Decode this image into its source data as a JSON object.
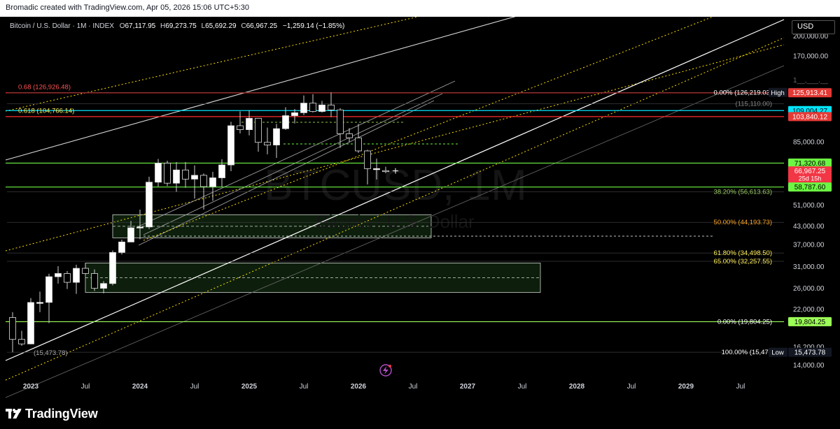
{
  "header": {
    "credit": "Bromadic created with TradingView.com, Apr 05, 2026 15:06 UTC+5:30"
  },
  "legend": {
    "symbol": "Bitcoin / U.S. Dollar · 1M · INDEX",
    "o_label": "O",
    "o_value": "67,117.95",
    "h_label": "H",
    "h_value": "69,273.75",
    "l_label": "L",
    "l_value": "65,692.29",
    "c_label": "C",
    "c_value": "66,967.25",
    "change": "−1,259.14 (−1.85%)",
    "change_color": "#ffffff"
  },
  "currency_button": "USD",
  "footer": {
    "brand": "TradingView"
  },
  "watermark": {
    "ticker": "BTCUSD, 1M",
    "name": "Bitcoin / U.S. Dollar"
  },
  "chart_data": {
    "type": "candlestick",
    "y_scale": "log",
    "ylim": [
      13000,
      230000
    ],
    "y_ticks": [
      {
        "value": 200000,
        "label": "200,000.00"
      },
      {
        "value": 170000,
        "label": "170,000.00"
      },
      {
        "value": 85000,
        "label": "85,000.00"
      },
      {
        "value": 51000,
        "label": "51,000.00"
      },
      {
        "value": 43000,
        "label": "43,000.00"
      },
      {
        "value": 37000,
        "label": "37,000.00"
      },
      {
        "value": 31000,
        "label": "31,000.00"
      },
      {
        "value": 26000,
        "label": "26,000.00"
      },
      {
        "value": 22000,
        "label": "22,000.00"
      },
      {
        "value": 16200,
        "label": "16,200.00"
      },
      {
        "value": 14000,
        "label": "14,000.00"
      }
    ],
    "x_range": [
      "2022-11",
      "2029-11"
    ],
    "x_ticks": [
      {
        "date": "2023-01",
        "label": "2023",
        "bold": true
      },
      {
        "date": "2023-07",
        "label": "Jul",
        "bold": false
      },
      {
        "date": "2024-01",
        "label": "2024",
        "bold": true
      },
      {
        "date": "2024-07",
        "label": "Jul",
        "bold": false
      },
      {
        "date": "2025-01",
        "label": "2025",
        "bold": true
      },
      {
        "date": "2025-07",
        "label": "Jul",
        "bold": false
      },
      {
        "date": "2026-01",
        "label": "2026",
        "bold": true
      },
      {
        "date": "2026-07",
        "label": "Jul",
        "bold": false
      },
      {
        "date": "2027-01",
        "label": "2027",
        "bold": true
      },
      {
        "date": "2027-07",
        "label": "Jul",
        "bold": false
      },
      {
        "date": "2028-01",
        "label": "2028",
        "bold": true
      },
      {
        "date": "2028-07",
        "label": "Jul",
        "bold": false
      },
      {
        "date": "2029-01",
        "label": "2029",
        "bold": true
      },
      {
        "date": "2029-07",
        "label": "Jul",
        "bold": false
      }
    ],
    "candles": [
      {
        "date": "2022-11",
        "o": 20490,
        "h": 21400,
        "l": 15480,
        "c": 17170
      },
      {
        "date": "2022-12",
        "o": 17170,
        "h": 18390,
        "l": 16300,
        "c": 16550
      },
      {
        "date": "2023-01",
        "o": 16550,
        "h": 23960,
        "l": 16500,
        "c": 23130
      },
      {
        "date": "2023-02",
        "o": 23130,
        "h": 25250,
        "l": 21400,
        "c": 23150
      },
      {
        "date": "2023-03",
        "o": 23150,
        "h": 29190,
        "l": 19570,
        "c": 28480
      },
      {
        "date": "2023-04",
        "o": 28480,
        "h": 31000,
        "l": 26940,
        "c": 29230
      },
      {
        "date": "2023-05",
        "o": 29230,
        "h": 29820,
        "l": 25800,
        "c": 27220
      },
      {
        "date": "2023-06",
        "o": 27220,
        "h": 31380,
        "l": 24800,
        "c": 30480
      },
      {
        "date": "2023-07",
        "o": 30480,
        "h": 31800,
        "l": 28860,
        "c": 29230
      },
      {
        "date": "2023-08",
        "o": 29230,
        "h": 30200,
        "l": 25400,
        "c": 25940
      },
      {
        "date": "2023-09",
        "o": 25940,
        "h": 27480,
        "l": 24900,
        "c": 26960
      },
      {
        "date": "2023-10",
        "o": 26960,
        "h": 35200,
        "l": 26560,
        "c": 34650
      },
      {
        "date": "2023-11",
        "o": 34650,
        "h": 38420,
        "l": 34100,
        "c": 37710
      },
      {
        "date": "2023-12",
        "o": 37710,
        "h": 44700,
        "l": 37620,
        "c": 42280
      },
      {
        "date": "2024-01",
        "o": 42280,
        "h": 48970,
        "l": 38550,
        "c": 42580
      },
      {
        "date": "2024-02",
        "o": 42580,
        "h": 63900,
        "l": 41880,
        "c": 61130
      },
      {
        "date": "2024-03",
        "o": 61130,
        "h": 73750,
        "l": 59000,
        "c": 71290
      },
      {
        "date": "2024-04",
        "o": 71290,
        "h": 72700,
        "l": 59200,
        "c": 60640
      },
      {
        "date": "2024-05",
        "o": 60640,
        "h": 71950,
        "l": 56550,
        "c": 67470
      },
      {
        "date": "2024-06",
        "o": 67470,
        "h": 71950,
        "l": 58450,
        "c": 62670
      },
      {
        "date": "2024-07",
        "o": 62670,
        "h": 70000,
        "l": 53550,
        "c": 64620
      },
      {
        "date": "2024-08",
        "o": 64620,
        "h": 65590,
        "l": 49000,
        "c": 58970
      },
      {
        "date": "2024-09",
        "o": 58970,
        "h": 66480,
        "l": 52550,
        "c": 63330
      },
      {
        "date": "2024-10",
        "o": 63330,
        "h": 73600,
        "l": 58900,
        "c": 70280
      },
      {
        "date": "2024-11",
        "o": 70280,
        "h": 99590,
        "l": 66800,
        "c": 96450
      },
      {
        "date": "2024-12",
        "o": 96450,
        "h": 108350,
        "l": 90600,
        "c": 93430
      },
      {
        "date": "2025-01",
        "o": 93430,
        "h": 109360,
        "l": 89200,
        "c": 102430
      },
      {
        "date": "2025-02",
        "o": 102430,
        "h": 102500,
        "l": 78200,
        "c": 84350
      },
      {
        "date": "2025-03",
        "o": 84350,
        "h": 95000,
        "l": 76550,
        "c": 82550
      },
      {
        "date": "2025-04",
        "o": 82550,
        "h": 97900,
        "l": 74400,
        "c": 94200
      },
      {
        "date": "2025-05",
        "o": 94200,
        "h": 111980,
        "l": 93300,
        "c": 104640
      },
      {
        "date": "2025-06",
        "o": 104640,
        "h": 110500,
        "l": 98200,
        "c": 107140
      },
      {
        "date": "2025-07",
        "o": 107140,
        "h": 123200,
        "l": 105100,
        "c": 115760
      },
      {
        "date": "2025-08",
        "o": 115760,
        "h": 124500,
        "l": 107300,
        "c": 108230
      },
      {
        "date": "2025-09",
        "o": 108230,
        "h": 117900,
        "l": 107260,
        "c": 114050
      },
      {
        "date": "2025-10",
        "o": 114050,
        "h": 126219,
        "l": 103500,
        "c": 109570
      },
      {
        "date": "2025-11",
        "o": 109570,
        "h": 111200,
        "l": 80600,
        "c": 90400
      },
      {
        "date": "2025-12",
        "o": 90400,
        "h": 94600,
        "l": 84500,
        "c": 87500
      },
      {
        "date": "2026-01",
        "o": 87500,
        "h": 97900,
        "l": 77500,
        "c": 78700
      },
      {
        "date": "2026-02",
        "o": 78700,
        "h": 79400,
        "l": 60000,
        "c": 68200
      },
      {
        "date": "2026-03",
        "o": 68200,
        "h": 74000,
        "l": 62500,
        "c": 68227
      },
      {
        "date": "2026-04",
        "o": 67118,
        "h": 69274,
        "l": 65692,
        "c": 66967
      }
    ],
    "horizontal_lines": [
      {
        "value": 125913.41,
        "color": "#ff2b2b",
        "width": 1.2
      },
      {
        "value": 109004.27,
        "color": "#00e5ff",
        "width": 1.2
      },
      {
        "value": 103840.12,
        "color": "#ff2b2b",
        "width": 1.2
      },
      {
        "value": 71320.68,
        "color": "#6cf542",
        "width": 1.2
      },
      {
        "value": 58787.6,
        "color": "#6cf542",
        "width": 1.2
      },
      {
        "value": 19804.25,
        "color": "#9cff57",
        "width": 1.2
      }
    ],
    "fib_levels": [
      {
        "value": 126219.03,
        "label": "0.00% (126,219.03)",
        "color": "#ffffff"
      },
      {
        "value": 115110,
        "label": "(115,110.00)",
        "color": "#888888"
      },
      {
        "value": 56613.63,
        "label": "38.20% (56,613.63)",
        "color": "#9ccc65"
      },
      {
        "value": 44193.73,
        "label": "50.00% (44,193.73)",
        "color": "#ffa726"
      },
      {
        "value": 34498.5,
        "label": "61.80% (34,498.50)",
        "color": "#ffee58"
      },
      {
        "value": 32257.55,
        "label": "65.00% (32,257.55)",
        "color": "#ffee58"
      },
      {
        "value": 19804.25,
        "label": "0.00% (19,804.25)",
        "color": "#ffffff"
      },
      {
        "value": 15473.78,
        "label": "100.00% (15,473",
        "color": "#ffffff"
      }
    ],
    "left_fib_labels": [
      {
        "value": 126926.48,
        "label": "0.68 (126,926.48)",
        "color": "#ff5252"
      },
      {
        "value": 104766.14,
        "label": "0.618 (104,766.14)",
        "color": "#ffee58"
      },
      {
        "value": 15473.78,
        "label": "(15,473.78)",
        "color": "#aaaaaa"
      }
    ],
    "zones": [
      {
        "from": "2023-10",
        "to": "2026-09",
        "top": 47000,
        "bottom": 39000
      },
      {
        "from": "2023-07",
        "to": "2027-09",
        "top": 31800,
        "bottom": 25100
      }
    ],
    "price_tags": [
      {
        "value": 126219.03,
        "text": "126,219.03",
        "bg": "#131722",
        "fg": "#ffffff",
        "prefix": "High"
      },
      {
        "value": 125913.41,
        "text": "125,913.41",
        "bg": "#e53935",
        "fg": "#ffffff"
      },
      {
        "value": 109004.27,
        "text": "109,004.27",
        "bg": "#00e5ff",
        "fg": "#000000"
      },
      {
        "value": 103840.12,
        "text": "103,840.12",
        "bg": "#e53935",
        "fg": "#ffffff"
      },
      {
        "value": 71320.68,
        "text": "71,320.68",
        "bg": "#6cf542",
        "fg": "#000000"
      },
      {
        "value": 66967.25,
        "text": "66,967.25",
        "bg": "#f23645",
        "fg": "#ffffff",
        "sub": "25d 15h"
      },
      {
        "value": 58787.6,
        "text": "58,787.60",
        "bg": "#6cf542",
        "fg": "#000000"
      },
      {
        "value": 19804.25,
        "text": "19,804.25",
        "bg": "#9cff57",
        "fg": "#000000"
      },
      {
        "value": 15473.78,
        "text": "15,473.78",
        "bg": "#131722",
        "fg": "#ffffff",
        "prefix": "Low"
      }
    ],
    "upper_partial_label": "1__,___.__"
  }
}
